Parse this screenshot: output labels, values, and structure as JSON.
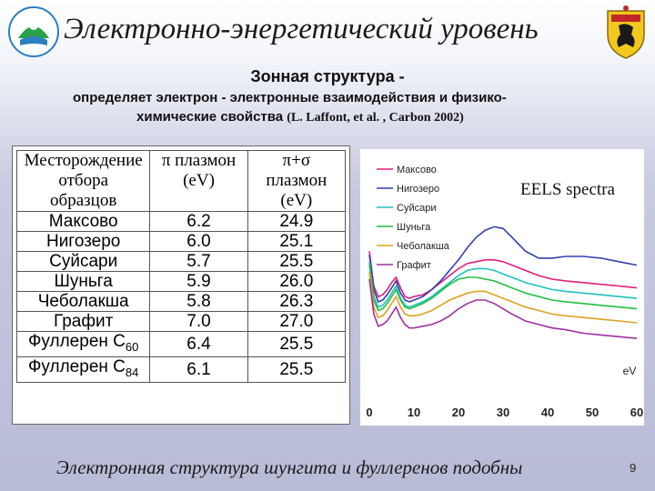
{
  "title": "Электронно-энергетический уровень",
  "subtitle": "Зонная структура -",
  "description_line1": "определяет электрон - электронные взаимодействия и физико-",
  "description_line2": "химические свойства",
  "reference": "(L. Laffont, et al. , Carbon 2002)",
  "table": {
    "headers": [
      [
        "Месторождение",
        "отбора",
        "образцов"
      ],
      [
        "π плазмон",
        "(eV)"
      ],
      [
        "π+σ",
        "плазмон",
        "(eV)"
      ]
    ],
    "rows": [
      [
        "Максово",
        "6.2",
        "24.9"
      ],
      [
        "Нигозеро",
        "6.0",
        "25.1"
      ],
      [
        "Суйсари",
        "5.7",
        "25.5"
      ],
      [
        "Шуньга",
        "5.9",
        "26.0"
      ],
      [
        "Чеболакша",
        "5.8",
        "26.3"
      ],
      [
        "Графит",
        "7.0",
        "27.0"
      ],
      [
        "Фуллерен С",
        "6.4",
        "25.5"
      ],
      [
        "Фуллерен С",
        "6.1",
        "25.5"
      ]
    ],
    "subscripts": [
      "",
      "",
      "",
      "",
      "",
      "",
      "60",
      "84"
    ]
  },
  "chart_data": {
    "type": "line",
    "title": "EELS spectra",
    "xlabel": "eV",
    "ylabel": "",
    "xlim": [
      0,
      60
    ],
    "ylim": [
      0,
      100
    ],
    "x_ticks": [
      "0",
      "10",
      "20",
      "30",
      "40",
      "50",
      "60"
    ],
    "grid": false,
    "legend_position": "top-left",
    "x": [
      0,
      1,
      2,
      3,
      4,
      5,
      6,
      7,
      8,
      9,
      10,
      12,
      14,
      16,
      18,
      20,
      22,
      24,
      26,
      28,
      30,
      32,
      35,
      38,
      41,
      44,
      48,
      52,
      56,
      60
    ],
    "series": [
      {
        "name": "Максово",
        "color": "#e0207a",
        "values": [
          78,
          58,
          52,
          53,
          56,
          60,
          63,
          57,
          52,
          51,
          52,
          53,
          56,
          60,
          64,
          68,
          71,
          72,
          73,
          73,
          72,
          70,
          67,
          64,
          62,
          61,
          60,
          59,
          58,
          57
        ]
      },
      {
        "name": "Нигозеро",
        "color": "#3040b0",
        "values": [
          76,
          56,
          49,
          50,
          53,
          57,
          61,
          54,
          50,
          49,
          50,
          52,
          56,
          61,
          67,
          73,
          80,
          86,
          90,
          92,
          91,
          86,
          78,
          74,
          74,
          75,
          75,
          74,
          72,
          70
        ]
      },
      {
        "name": "Суйсари",
        "color": "#20c0c0",
        "values": [
          72,
          52,
          46,
          47,
          50,
          54,
          58,
          51,
          47,
          46,
          47,
          49,
          52,
          56,
          60,
          64,
          67,
          68,
          68,
          67,
          65,
          63,
          60,
          58,
          56,
          55,
          54,
          53,
          52,
          51
        ]
      },
      {
        "name": "Шуньга",
        "color": "#20c040",
        "values": [
          70,
          50,
          44,
          45,
          48,
          52,
          56,
          50,
          46,
          45,
          46,
          48,
          51,
          55,
          59,
          62,
          63,
          63,
          62,
          61,
          59,
          57,
          54,
          52,
          50,
          49,
          48,
          47,
          46,
          45
        ]
      },
      {
        "name": "Чеболакша",
        "color": "#e0a020",
        "values": [
          66,
          46,
          40,
          41,
          44,
          48,
          52,
          46,
          42,
          41,
          41,
          42,
          44,
          47,
          50,
          52,
          54,
          55,
          55,
          53,
          51,
          49,
          46,
          44,
          42,
          41,
          40,
          39,
          38,
          37
        ]
      },
      {
        "name": "Графит",
        "color": "#a030a0",
        "values": [
          62,
          42,
          35,
          36,
          38,
          42,
          46,
          40,
          36,
          34,
          34,
          35,
          36,
          38,
          41,
          45,
          48,
          50,
          50,
          48,
          45,
          42,
          38,
          36,
          34,
          33,
          31,
          30,
          29,
          28
        ]
      }
    ]
  },
  "footer": "Электронная структура шунгита и фуллеренов подобны",
  "page_number": "9",
  "colors": {
    "accent_blue": "#1a5fb4",
    "accent_green": "#2e9e4f",
    "emblem_yellow": "#f2c81e",
    "emblem_red": "#c0282a"
  }
}
